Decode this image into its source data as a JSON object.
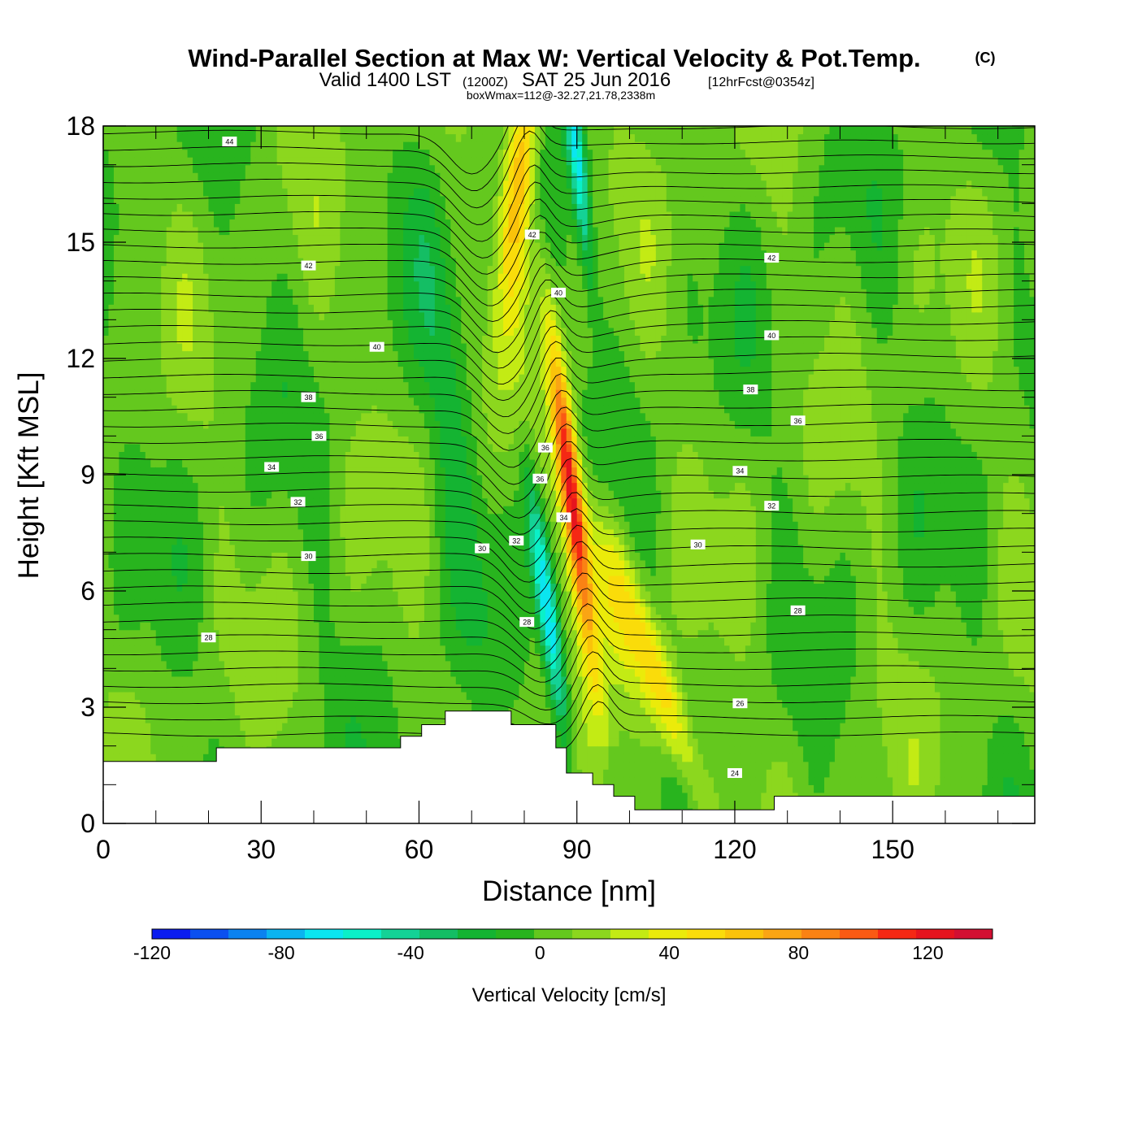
{
  "title": {
    "main": "Wind-Parallel Section at Max W: Vertical Velocity & Pot.Temp.",
    "copyright": "(C)",
    "valid_prefix": "Valid 1400 LST",
    "valid_utc": "(1200Z)",
    "valid_date": "SAT 25 Jun 2016",
    "forecast": "[12hrFcst@0354z]",
    "boxwmax": "boxWmax=112@-32.27,21.78,2338m"
  },
  "colors": {
    "background": "#ffffff",
    "terrain": "#ffffff",
    "contour": "#000000",
    "palette": [
      "#0a1cf0",
      "#0a50f0",
      "#0a82f0",
      "#0ab4f0",
      "#0ae6f0",
      "#0af0c8",
      "#14d296",
      "#14be64",
      "#14b432",
      "#28b41e",
      "#64c81e",
      "#8cd71e",
      "#c3eb14",
      "#ebeb0a",
      "#fadc0a",
      "#fac30a",
      "#faa514",
      "#fa8214",
      "#fa5a14",
      "#f52814",
      "#e6141e",
      "#d20f32"
    ]
  },
  "chart_data": {
    "type": "heatmap",
    "xlabel": "Distance [nm]",
    "ylabel": "Height [Kft MSL]",
    "xlim": [
      0,
      177
    ],
    "ylim": [
      0,
      18
    ],
    "xticks": [
      0,
      30,
      60,
      90,
      120,
      150
    ],
    "yticks": [
      0,
      3,
      6,
      9,
      12,
      15,
      18
    ],
    "colorbar": {
      "label": "Vertical Velocity [cm/s]",
      "min": -120,
      "max": 140,
      "step": 12,
      "ticks": [
        -120,
        -80,
        -40,
        0,
        40,
        80,
        120
      ],
      "tick_labels": [
        "-120",
        "-80",
        "-40",
        "0",
        "40",
        "80",
        "120"
      ]
    },
    "field_features": [
      {
        "kind": "updraft",
        "x": 88.5,
        "z_bottom": 4,
        "z_top": 14,
        "w_max": 112
      },
      {
        "kind": "downdraft",
        "x": 85,
        "z_bottom": 3,
        "z_top": 9,
        "w_min": -85
      },
      {
        "kind": "updraft_upper",
        "x": 78,
        "z_bottom": 12,
        "z_top": 18,
        "w_max": 70
      },
      {
        "kind": "downdraft_upper",
        "x": 91,
        "z_bottom": 14,
        "z_top": 18,
        "w_min": -65
      },
      {
        "kind": "updraft_low",
        "x": 110,
        "z_bottom": 1,
        "z_top": 4,
        "w_max": 50
      }
    ],
    "terrain": [
      [
        0,
        1.6
      ],
      [
        21.5,
        1.6
      ],
      [
        21.5,
        1.95
      ],
      [
        56.5,
        1.95
      ],
      [
        56.5,
        2.25
      ],
      [
        60.5,
        2.25
      ],
      [
        60.5,
        2.55
      ],
      [
        65,
        2.55
      ],
      [
        65,
        2.9
      ],
      [
        77.5,
        2.9
      ],
      [
        77.5,
        2.55
      ],
      [
        86,
        2.55
      ],
      [
        86,
        1.95
      ],
      [
        88,
        1.95
      ],
      [
        88,
        1.3
      ],
      [
        93,
        1.3
      ],
      [
        93,
        1.0
      ],
      [
        97,
        1.0
      ],
      [
        97,
        0.7
      ],
      [
        101,
        0.7
      ],
      [
        101,
        0.35
      ],
      [
        127.5,
        0.35
      ],
      [
        127.5,
        0.7
      ],
      [
        177,
        0.7
      ]
    ],
    "theta_contour_labels": [
      {
        "text": "44",
        "x": 24,
        "z": 17.6
      },
      {
        "text": "42",
        "x": 39,
        "z": 14.4
      },
      {
        "text": "42",
        "x": 81.5,
        "z": 15.2
      },
      {
        "text": "42",
        "x": 127,
        "z": 14.6
      },
      {
        "text": "40",
        "x": 52,
        "z": 12.3
      },
      {
        "text": "40",
        "x": 86.5,
        "z": 13.7
      },
      {
        "text": "40",
        "x": 127,
        "z": 12.6
      },
      {
        "text": "38",
        "x": 39,
        "z": 11.0
      },
      {
        "text": "38",
        "x": 123,
        "z": 11.2
      },
      {
        "text": "36",
        "x": 41,
        "z": 10.0
      },
      {
        "text": "36",
        "x": 84,
        "z": 9.7
      },
      {
        "text": "36",
        "x": 132,
        "z": 10.4
      },
      {
        "text": "34",
        "x": 32,
        "z": 9.2
      },
      {
        "text": "36",
        "x": 83,
        "z": 8.9
      },
      {
        "text": "34",
        "x": 121,
        "z": 9.1
      },
      {
        "text": "34",
        "x": 87.5,
        "z": 7.9
      },
      {
        "text": "32",
        "x": 37,
        "z": 8.3
      },
      {
        "text": "32",
        "x": 78.5,
        "z": 7.3
      },
      {
        "text": "32",
        "x": 127,
        "z": 8.2
      },
      {
        "text": "30",
        "x": 72,
        "z": 7.1
      },
      {
        "text": "30",
        "x": 39,
        "z": 6.9
      },
      {
        "text": "30",
        "x": 113,
        "z": 7.2
      },
      {
        "text": "28",
        "x": 20,
        "z": 4.8
      },
      {
        "text": "28",
        "x": 80.5,
        "z": 5.2
      },
      {
        "text": "28",
        "x": 132,
        "z": 5.5
      },
      {
        "text": "26",
        "x": 121,
        "z": 3.1
      },
      {
        "text": "24",
        "x": 120,
        "z": 1.3
      }
    ]
  }
}
